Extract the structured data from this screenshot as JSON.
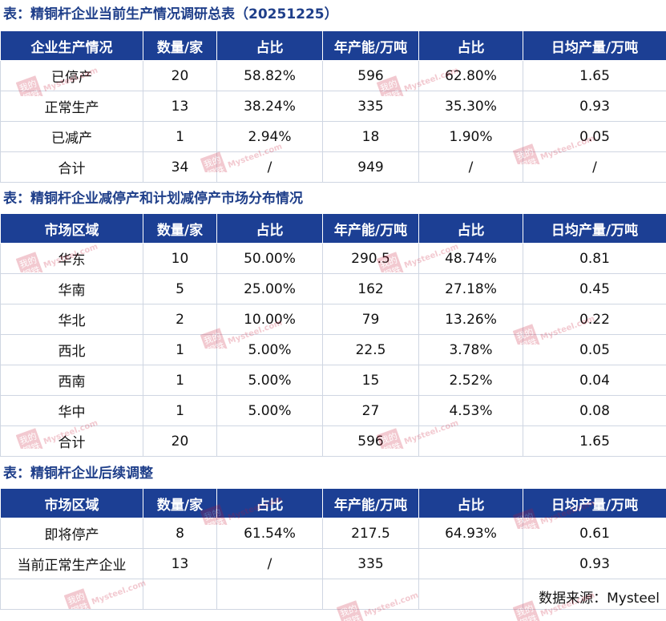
{
  "section1": {
    "title": "表：精铜杆企业当前生产情况调研总表（20251225）",
    "headers": [
      "企业生产情况",
      "数量/家",
      "占比",
      "年产能/万吨",
      "占比",
      "日均产量/万吨"
    ],
    "rows": [
      [
        "已停产",
        "20",
        "58.82%",
        "596",
        "62.80%",
        "1.65"
      ],
      [
        "正常生产",
        "13",
        "38.24%",
        "335",
        "35.30%",
        "0.93"
      ],
      [
        "已减产",
        "1",
        "2.94%",
        "18",
        "1.90%",
        "0.05"
      ],
      [
        "合计",
        "34",
        "/",
        "949",
        "/",
        "/"
      ]
    ]
  },
  "section2": {
    "title": "表：精铜杆企业减停产和计划减停产市场分布情况",
    "headers": [
      "市场区域",
      "数量/家",
      "占比",
      "年产能/万吨",
      "占比",
      "日均产量/万吨"
    ],
    "rows": [
      [
        "华东",
        "10",
        "50.00%",
        "290.5",
        "48.74%",
        "0.81"
      ],
      [
        "华南",
        "5",
        "25.00%",
        "162",
        "27.18%",
        "0.45"
      ],
      [
        "华北",
        "2",
        "10.00%",
        "79",
        "13.26%",
        "0.22"
      ],
      [
        "西北",
        "1",
        "5.00%",
        "22.5",
        "3.78%",
        "0.05"
      ],
      [
        "西南",
        "1",
        "5.00%",
        "15",
        "2.52%",
        "0.04"
      ],
      [
        "华中",
        "1",
        "5.00%",
        "27",
        "4.53%",
        "0.08"
      ],
      [
        "合计",
        "20",
        "",
        "596",
        "",
        "1.65"
      ]
    ]
  },
  "section3": {
    "title": "表：精铜杆企业后续调整",
    "headers": [
      "市场区域",
      "数量/家",
      "占比",
      "年产能/万吨",
      "占比",
      "日均产量/万吨"
    ],
    "rows": [
      [
        "即将停产",
        "8",
        "61.54%",
        "217.5",
        "64.93%",
        "0.61"
      ],
      [
        "当前正常生产企业",
        "13",
        "/",
        "335",
        "",
        "0.93"
      ],
      [
        "",
        "",
        "",
        "",
        "",
        ""
      ]
    ]
  },
  "source": "数据来源：Mysteel",
  "watermark": {
    "logo_text_top": "我的",
    "logo_text_bottom": "钢铁",
    "site_text": "Mysteel.com",
    "color": "#c8102e"
  },
  "colors": {
    "header_bg": "#1c3f94",
    "title": "#1f3f8a"
  }
}
